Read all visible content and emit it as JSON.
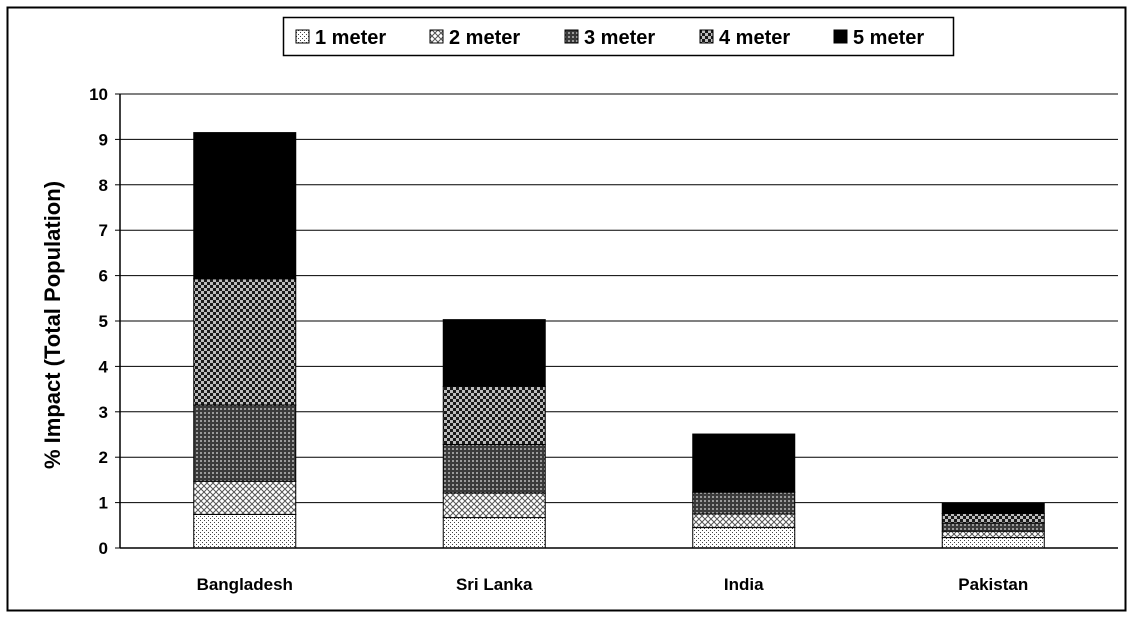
{
  "chart_data": {
    "type": "bar",
    "stacked": true,
    "categories": [
      "Bangladesh",
      "Sri Lanka",
      "India",
      "Pakistan"
    ],
    "series": [
      {
        "name": "1 meter",
        "values": [
          0.74,
          0.67,
          0.45,
          0.23
        ],
        "pattern": "dots"
      },
      {
        "name": "2 meter",
        "values": [
          0.73,
          0.54,
          0.3,
          0.14
        ],
        "pattern": "crosshatch"
      },
      {
        "name": "3 meter",
        "values": [
          1.68,
          1.07,
          0.48,
          0.18
        ],
        "pattern": "dense-grid"
      },
      {
        "name": "4 meter",
        "values": [
          2.78,
          1.28,
          0.0,
          0.21
        ],
        "pattern": "checker"
      },
      {
        "name": "5 meter",
        "values": [
          3.22,
          1.47,
          1.28,
          0.22
        ],
        "pattern": "solid"
      }
    ],
    "title": "",
    "xlabel": "",
    "ylabel": "% Impact (Total Population)",
    "ylim": [
      0,
      10
    ],
    "yticks": [
      "0",
      "1",
      "2",
      "3",
      "4",
      "5",
      "6",
      "7",
      "8",
      "9",
      "10"
    ],
    "grid": "horizontal",
    "legend_position": "top-center"
  }
}
